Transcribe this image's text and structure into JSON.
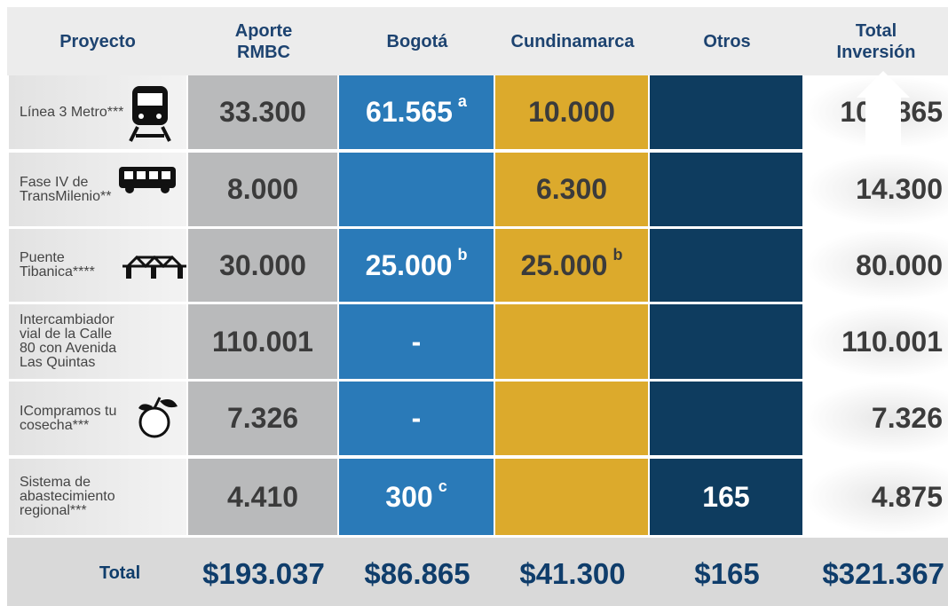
{
  "header": [
    "Proyecto",
    "Aporte RMBC",
    "Bogotá",
    "Cundinamarca",
    "Otros",
    "Total Inversión"
  ],
  "rows": [
    {
      "project": "Línea 3 Metro***",
      "aporte": "33.300",
      "bogota": "61.565",
      "bogota_note": "a",
      "cundinamarca": "10.000",
      "total": "104.865"
    },
    {
      "project": "Fase IV de TransMilenio**",
      "aporte": "8.000",
      "cundinamarca": "6.300",
      "total": "14.300"
    },
    {
      "project": "Puente Tibanica****",
      "aporte": "30.000",
      "bogota": "25.000",
      "bogota_note": "b",
      "cundinamarca": "25.000",
      "cundinamarca_note": "b",
      "total": "80.000"
    },
    {
      "project": "Intercambiador vial de la Calle 80 con Avenida Las Quintas",
      "aporte": "110.001",
      "bogota": "-",
      "total": "110.001"
    },
    {
      "project": "ICompramos tu cosecha***",
      "aporte": "7.326",
      "bogota": "-",
      "total": "7.326"
    },
    {
      "project": "Sistema de abastecimiento regional***",
      "aporte": "4.410",
      "bogota": "300",
      "bogota_note": "c",
      "otros": "165",
      "total": "4.875"
    }
  ],
  "totals": {
    "label": "Total",
    "aporte": "$193.037",
    "bogota": "$86.865",
    "cundinamarca": "$41.300",
    "otros": "$165",
    "total": "$321.367"
  }
}
